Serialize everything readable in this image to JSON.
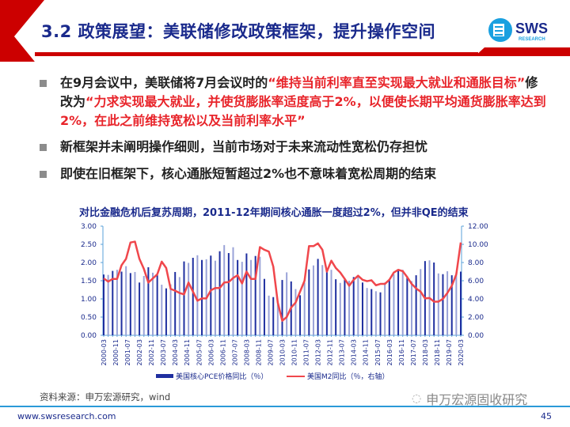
{
  "header": {
    "title": "3.2 政策展望：美联储修改政策框架，提升操作空间",
    "logo_text": "SWS",
    "logo_sub": "RESEARCH",
    "accent": "#cc0000"
  },
  "bullets": [
    {
      "parts": [
        {
          "text": "在9月会议中，美联储将7月会议时的",
          "red": false
        },
        {
          "text": "“维持当前利率直至实现最大就业和通胀目标”",
          "red": true
        },
        {
          "text": "修改为",
          "red": false
        },
        {
          "text": "“力求实现最大就业，并使货膨胀率适度高于2%，以便使长期平均通货膨胀率达到2%，在此之前维持宽松以及当前利率水平”",
          "red": true
        }
      ]
    },
    {
      "parts": [
        {
          "text": "新框架并未阐明操作细则，当前市场对于未来流动性宽松仍存担忧",
          "red": false
        }
      ]
    },
    {
      "parts": [
        {
          "text": "即使在旧框架下，核心通胀短暂超过2%也不意味着宽松周期的结束",
          "red": false
        }
      ]
    }
  ],
  "chart_data": {
    "type": "bar+line",
    "title": "对比金融危机后复苏周期，2011-12年期间核心通胀一度超过2%，但并非QE的结束",
    "x_range": [
      "2000-03",
      "2020-03"
    ],
    "x_tick_labels": [
      "2000-03",
      "2000-11",
      "2001-07",
      "2002-03",
      "2002-11",
      "2003-07",
      "2004-03",
      "2004-11",
      "2005-07",
      "2006-03",
      "2006-11",
      "2007-07",
      "2008-03",
      "2008-11",
      "2009-07",
      "2010-03",
      "2010-11",
      "2011-07",
      "2012-03",
      "2012-11",
      "2013-07",
      "2014-03",
      "2014-11",
      "2015-07",
      "2016-03",
      "2016-11",
      "2017-07",
      "2018-03",
      "2018-11",
      "2019-07",
      "2020-03"
    ],
    "y_left": {
      "ticks": [
        "0.00",
        "0.50",
        "1.00",
        "1.50",
        "2.00",
        "2.50",
        "3.00"
      ],
      "range": [
        0,
        3
      ]
    },
    "y_right": {
      "ticks": [
        "0.00",
        "2.00",
        "4.00",
        "6.00",
        "8.00",
        "10.00",
        "12.00"
      ],
      "range": [
        0,
        12
      ]
    },
    "legend_placement": "bottom",
    "series": [
      {
        "name": "美国核心PCE价格同比（％）",
        "type": "bar",
        "axis": "left",
        "color": "#1f2fa0",
        "color_alt": "#9aa3d8",
        "values": [
          1.67,
          1.66,
          1.77,
          1.8,
          1.75,
          1.9,
          1.71,
          1.74,
          1.45,
          1.63,
          1.87,
          1.72,
          1.65,
          1.39,
          1.29,
          1.4,
          1.74,
          1.6,
          2.03,
          1.99,
          2.13,
          2.2,
          2.07,
          2.09,
          2.19,
          2.05,
          2.31,
          2.48,
          2.26,
          2.42,
          2.07,
          2.02,
          2.25,
          2.07,
          2.18,
          2.16,
          1.55,
          1.09,
          1.05,
          0.94,
          1.52,
          1.73,
          1.48,
          1.27,
          1.1,
          1.45,
          1.81,
          1.92,
          2.1,
          1.93,
          1.78,
          1.8,
          1.54,
          1.44,
          1.57,
          1.5,
          1.6,
          1.65,
          1.45,
          1.3,
          1.27,
          1.21,
          1.18,
          1.45,
          1.53,
          1.68,
          1.8,
          1.8,
          1.62,
          1.49,
          1.65,
          1.82,
          2.04,
          2.06,
          2.0,
          1.7,
          1.68,
          1.76,
          1.65,
          1.72,
          1.75
        ]
      },
      {
        "name": "美国M2同比（％，右轴）",
        "type": "line",
        "axis": "right",
        "color": "#f0474c",
        "values": [
          6.25,
          5.9,
          6.2,
          6.2,
          7.7,
          8.4,
          10.2,
          10.3,
          8.4,
          7.3,
          5.8,
          6.25,
          6.7,
          8.1,
          7.4,
          5.1,
          4.9,
          4.65,
          4.5,
          5.8,
          4.8,
          3.8,
          4.05,
          4.05,
          4.95,
          5.2,
          5.2,
          5.8,
          5.85,
          6.3,
          6.6,
          5.7,
          7.0,
          6.2,
          6.2,
          9.7,
          9.4,
          9.2,
          7.55,
          3.6,
          1.6,
          2.0,
          3.05,
          3.6,
          4.8,
          6.0,
          9.8,
          9.8,
          10.1,
          9.4,
          7.0,
          8.2,
          7.4,
          6.9,
          6.2,
          5.45,
          6.1,
          6.55,
          6.1,
          5.95,
          6.05,
          5.5,
          5.65,
          5.65,
          6.1,
          6.9,
          7.2,
          7.05,
          6.4,
          5.65,
          5.15,
          4.8,
          4.05,
          4.1,
          3.7,
          3.7,
          4.0,
          4.65,
          5.45,
          6.7,
          10.2
        ]
      }
    ]
  },
  "source": "资料来源：申万宏源研究，wind",
  "watermark": "申万宏源固收研究",
  "footer": {
    "site": "www.swsresearch.com",
    "page": "45"
  }
}
